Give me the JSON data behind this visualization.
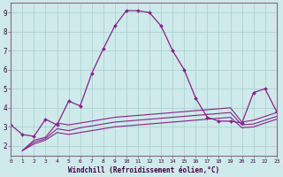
{
  "xlabel": "Windchill (Refroidissement éolien,°C)",
  "background_color": "#ceeaea",
  "line_color": "#882288",
  "grid_color": "#a8cccc",
  "spine_color": "#886688",
  "x_min": 0,
  "x_max": 23,
  "y_min": 1.5,
  "y_max": 9.5,
  "yticks": [
    2,
    3,
    4,
    5,
    6,
    7,
    8,
    9
  ],
  "xticks": [
    0,
    1,
    2,
    3,
    4,
    5,
    6,
    7,
    8,
    9,
    10,
    11,
    12,
    13,
    14,
    15,
    16,
    17,
    18,
    19,
    20,
    21,
    22,
    23
  ],
  "line1_x": [
    0,
    1,
    2,
    3,
    4,
    5,
    6,
    7,
    8,
    9,
    10,
    11,
    12,
    13,
    14,
    15,
    16,
    17,
    18,
    19,
    20,
    21,
    22,
    23
  ],
  "line1_y": [
    3.1,
    2.6,
    2.5,
    3.4,
    3.1,
    4.35,
    4.1,
    5.8,
    7.1,
    8.3,
    9.1,
    9.1,
    9.0,
    8.3,
    7.0,
    6.0,
    4.5,
    3.5,
    3.3,
    3.3,
    3.2,
    4.8,
    5.0,
    3.8
  ],
  "line2_x": [
    1,
    2,
    3,
    4,
    5,
    6,
    7,
    8,
    9,
    10,
    11,
    12,
    13,
    14,
    15,
    16,
    17,
    18,
    19,
    20,
    21,
    22,
    23
  ],
  "line2_y": [
    1.75,
    2.3,
    2.45,
    3.2,
    3.1,
    3.2,
    3.3,
    3.4,
    3.5,
    3.55,
    3.6,
    3.65,
    3.7,
    3.75,
    3.8,
    3.85,
    3.9,
    3.95,
    4.0,
    3.25,
    3.35,
    3.55,
    3.75
  ],
  "line3_x": [
    1,
    2,
    3,
    4,
    5,
    6,
    7,
    8,
    9,
    10,
    11,
    12,
    13,
    14,
    15,
    16,
    17,
    18,
    19,
    20,
    21,
    22,
    23
  ],
  "line3_y": [
    1.75,
    2.2,
    2.38,
    2.9,
    2.8,
    2.95,
    3.05,
    3.15,
    3.25,
    3.3,
    3.35,
    3.4,
    3.45,
    3.5,
    3.55,
    3.6,
    3.65,
    3.7,
    3.75,
    3.1,
    3.15,
    3.35,
    3.55
  ],
  "line4_x": [
    1,
    2,
    3,
    4,
    5,
    6,
    7,
    8,
    9,
    10,
    11,
    12,
    13,
    14,
    15,
    16,
    17,
    18,
    19,
    20,
    21,
    22,
    23
  ],
  "line4_y": [
    1.75,
    2.1,
    2.3,
    2.7,
    2.6,
    2.7,
    2.8,
    2.9,
    3.0,
    3.05,
    3.1,
    3.15,
    3.2,
    3.25,
    3.3,
    3.35,
    3.4,
    3.45,
    3.5,
    2.95,
    3.0,
    3.2,
    3.4
  ]
}
